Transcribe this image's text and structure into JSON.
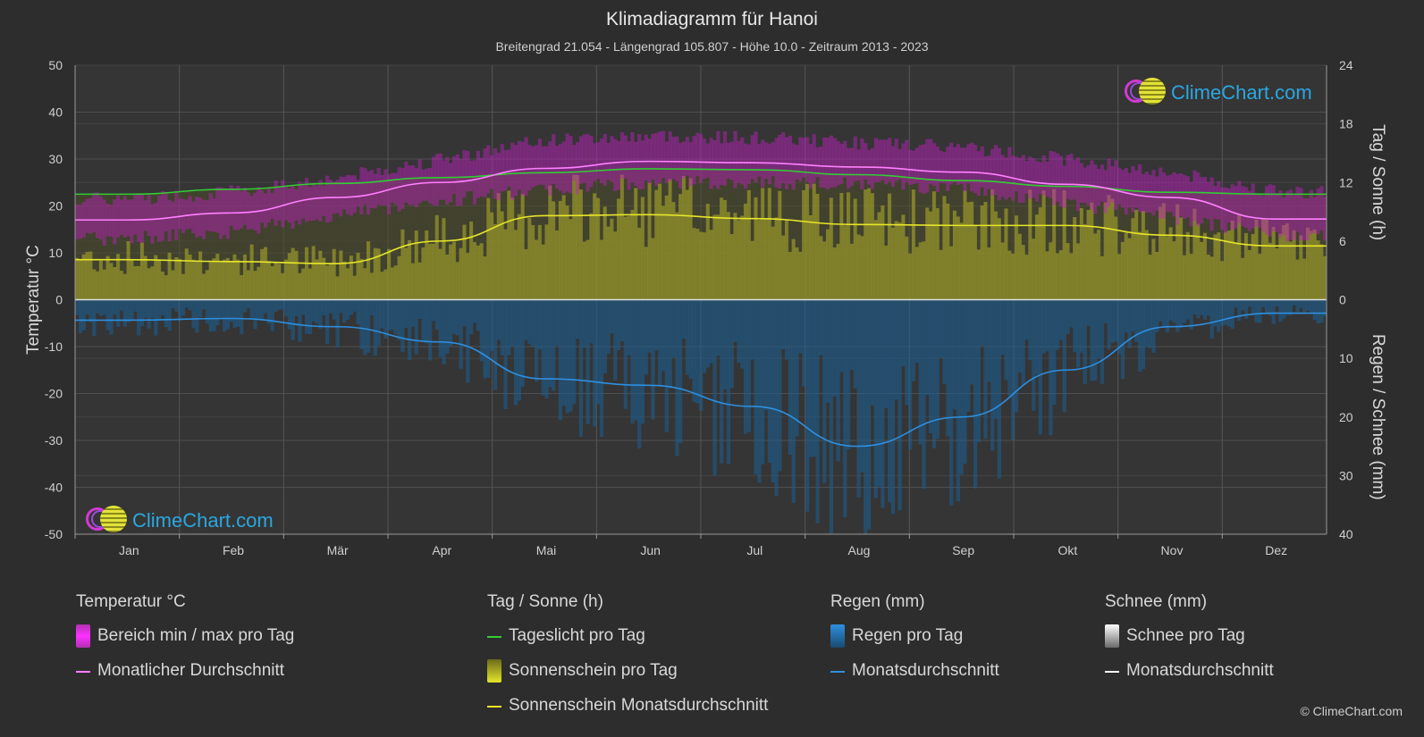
{
  "title": "Klimadiagramm für Hanoi",
  "subtitle": "Breitengrad 21.054 - Längengrad 105.807 - Höhe 10.0 - Zeitraum 2013 - 2023",
  "logo_text": "ClimeChart.com",
  "copyright": "© ClimeChart.com",
  "colors": {
    "background": "#2d2d2d",
    "temp_range": "#c020c0",
    "temp_avg": "#ff80ff",
    "daylight": "#33cc33",
    "sunshine_fill": "#9a9a2a",
    "sunshine_avg": "#e6e62a",
    "rain_fill": "#1a5f93",
    "rain_avg": "#2e8fe0",
    "snow_avg": "#ffffff"
  },
  "legend": {
    "temperature": {
      "header": "Temperatur °C",
      "range": "Bereich min / max pro Tag",
      "avg": "Monatlicher Durchschnitt"
    },
    "sun": {
      "header": "Tag / Sonne (h)",
      "daylight": "Tageslicht pro Tag",
      "sunshine": "Sonnenschein pro Tag",
      "sunshine_avg": "Sonnenschein Monatsdurchschnitt"
    },
    "rain": {
      "header": "Regen (mm)",
      "per_day": "Regen pro Tag",
      "avg": "Monatsdurchschnitt"
    },
    "snow": {
      "header": "Schnee (mm)",
      "per_day": "Schnee pro Tag",
      "avg": "Monatsdurchschnitt"
    }
  },
  "chart_data": {
    "type": "line",
    "categories": [
      "Jan",
      "Feb",
      "Mär",
      "Apr",
      "Mai",
      "Jun",
      "Jul",
      "Aug",
      "Sep",
      "Okt",
      "Nov",
      "Dez"
    ],
    "y_left": {
      "label": "Temperatur °C",
      "range": [
        -50,
        50
      ],
      "ticks": [
        50,
        40,
        30,
        20,
        10,
        0,
        -10,
        -20,
        -30,
        -40,
        -50
      ]
    },
    "y_right_top": {
      "label": "Tag / Sonne (h)",
      "range": [
        0,
        24
      ],
      "ticks": [
        24,
        18,
        12,
        6,
        0
      ]
    },
    "y_right_bottom": {
      "label": "Regen / Schnee (mm)",
      "range": [
        0,
        40
      ],
      "ticks": [
        0,
        10,
        20,
        30,
        40
      ]
    },
    "grid": true,
    "series": [
      {
        "name": "Monatlicher Durchschnitt",
        "unit": "°C",
        "values": [
          17.0,
          18.5,
          21.8,
          25.0,
          28.0,
          29.5,
          29.2,
          28.3,
          27.2,
          24.6,
          21.8,
          17.2
        ]
      },
      {
        "name": "Bereich min / max pro Tag (min)",
        "unit": "°C",
        "values": [
          14.5,
          16.0,
          19.5,
          22.5,
          25.0,
          26.5,
          26.5,
          26.0,
          25.0,
          22.0,
          19.0,
          15.0
        ]
      },
      {
        "name": "Bereich min / max pro Tag (max)",
        "unit": "°C",
        "values": [
          20.0,
          21.5,
          24.5,
          28.5,
          32.5,
          33.5,
          33.0,
          32.0,
          31.0,
          28.5,
          25.5,
          21.5
        ]
      },
      {
        "name": "Tageslicht pro Tag",
        "unit": "h",
        "values": [
          10.8,
          11.3,
          11.9,
          12.5,
          13.0,
          13.4,
          13.3,
          12.8,
          12.2,
          11.6,
          11.0,
          10.8
        ]
      },
      {
        "name": "Sonnenschein Monatsdurchschnitt",
        "unit": "h",
        "values": [
          4.1,
          3.9,
          3.7,
          6.0,
          8.6,
          8.7,
          8.3,
          7.7,
          7.6,
          7.6,
          6.6,
          5.5
        ]
      },
      {
        "name": "Regen Monatsdurchschnitt",
        "unit": "mm",
        "values": [
          3.5,
          3.2,
          4.6,
          7.2,
          13.5,
          14.6,
          18.2,
          25.0,
          20.0,
          12.0,
          4.6,
          2.3
        ]
      },
      {
        "name": "Schnee Monatsdurchschnitt",
        "unit": "mm",
        "values": [
          0,
          0,
          0,
          0,
          0,
          0,
          0,
          0,
          0,
          0,
          0,
          0
        ]
      }
    ]
  }
}
